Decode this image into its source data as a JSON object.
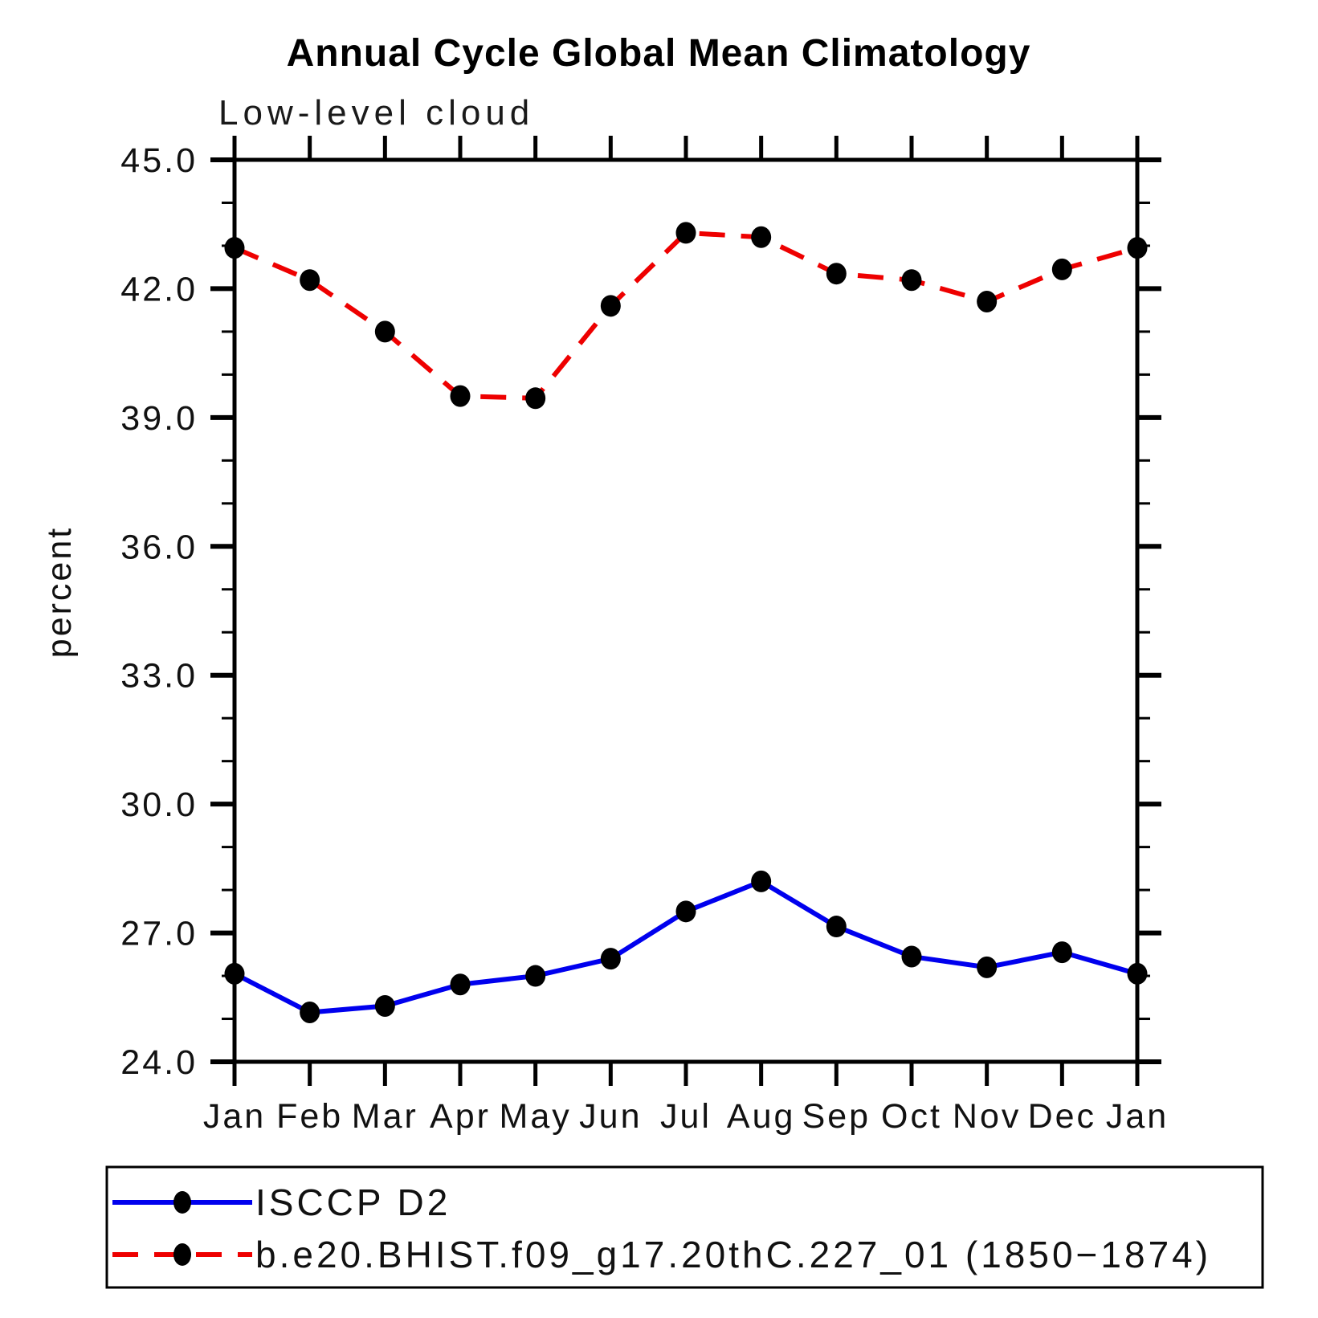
{
  "chart_data": {
    "type": "line",
    "title": "Annual Cycle Global Mean Climatology",
    "subtitle": "Low-level cloud",
    "ylabel": "percent",
    "xlabel": "",
    "categories": [
      "Jan",
      "Feb",
      "Mar",
      "Apr",
      "May",
      "Jun",
      "Jul",
      "Aug",
      "Sep",
      "Oct",
      "Nov",
      "Dec",
      "Jan"
    ],
    "ylim": [
      24.0,
      45.0
    ],
    "y_major_step": 3.0,
    "y_minor_step": 1.0,
    "y_tick_labels": [
      "24.0",
      "27.0",
      "30.0",
      "33.0",
      "36.0",
      "39.0",
      "42.0",
      "45.0"
    ],
    "grid": false,
    "legend_position": "bottom-left-box",
    "frame_color": "#000000",
    "series": [
      {
        "id": "isccp",
        "name": "ISCCP D2",
        "color": "#0000ee",
        "style": "solid",
        "marker": "filled-circle",
        "marker_color": "#000000",
        "values": [
          26.05,
          25.15,
          25.3,
          25.8,
          26.0,
          26.4,
          27.5,
          28.2,
          27.15,
          26.45,
          26.2,
          26.55,
          26.05
        ]
      },
      {
        "id": "model",
        "name": "b.e20.BHIST.f09_g17.20thC.227_01 (1850−1874)",
        "color": "#ee0000",
        "style": "dashed",
        "marker": "filled-circle",
        "marker_color": "#000000",
        "values": [
          42.95,
          42.2,
          41.0,
          39.5,
          39.45,
          41.6,
          43.3,
          43.2,
          42.35,
          42.2,
          41.7,
          42.45,
          42.95
        ]
      }
    ]
  }
}
